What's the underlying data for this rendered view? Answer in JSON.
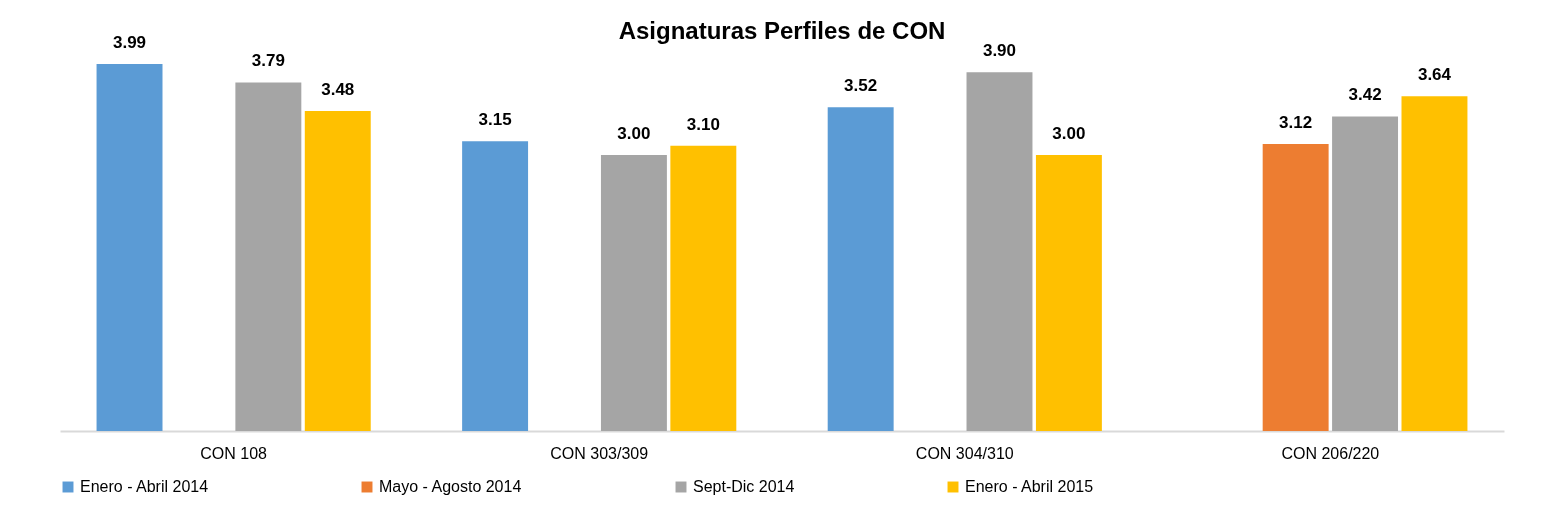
{
  "chart_data": {
    "type": "bar",
    "title": "Asignaturas Perfiles de CON",
    "categories": [
      "CON 108",
      "CON 303/309",
      "CON 304/310",
      "CON 206/220"
    ],
    "series": [
      {
        "name": "Enero - Abril 2014",
        "color": "#5b9bd5",
        "values": [
          3.99,
          3.15,
          3.52,
          null
        ],
        "value_labels": [
          "3.99",
          "3.15",
          "3.52",
          null
        ]
      },
      {
        "name": "Mayo - Agosto 2014",
        "color": "#ed7d31",
        "values": [
          null,
          null,
          null,
          3.12
        ],
        "value_labels": [
          null,
          null,
          null,
          "3.12"
        ]
      },
      {
        "name": "Sept-Dic 2014",
        "color": "#a5a5a5",
        "values": [
          3.79,
          3.0,
          3.9,
          3.42
        ],
        "value_labels": [
          "3.79",
          "3.00",
          "3.90",
          "3.42"
        ]
      },
      {
        "name": "Enero - Abril 2015",
        "color": "#ffc000",
        "values": [
          3.48,
          3.1,
          3.0,
          3.64
        ],
        "value_labels": [
          "3.48",
          "3.10",
          "3.00",
          "3.64"
        ]
      }
    ],
    "legend": "bottom"
  }
}
